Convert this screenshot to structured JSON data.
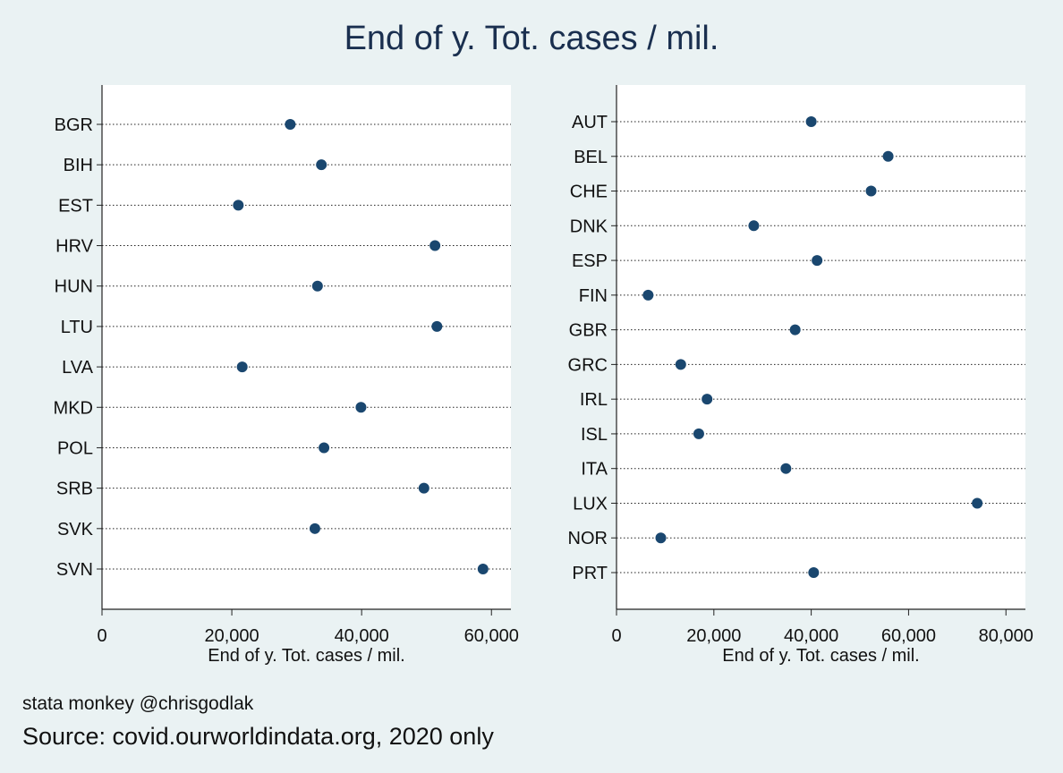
{
  "title": "End of y. Tot. cases / mil.",
  "notes": {
    "credit": "stata monkey @chrisgodlak",
    "source": "Source: covid.ourworldindata.org, 2020 only"
  },
  "colors": {
    "background": "#eaf2f3",
    "plot_area": "#ffffff",
    "marker": "#1a476f",
    "text": "#111111",
    "title": "#1a2f4f"
  },
  "chart_data": [
    {
      "type": "scatter",
      "orientation": "horizontal-dot",
      "xlabel": "End of y. Tot. cases / mil.",
      "xlim": [
        0,
        63000
      ],
      "xticks": [
        0,
        20000,
        40000,
        60000
      ],
      "xtick_labels": [
        "0",
        "20,000",
        "40,000",
        "60,000"
      ],
      "grid": "dotted horizontal",
      "categories": [
        "BGR",
        "BIH",
        "EST",
        "HRV",
        "HUN",
        "LTU",
        "LVA",
        "MKD",
        "POL",
        "SRB",
        "SVK",
        "SVN"
      ],
      "values": [
        29000,
        33800,
        21000,
        51300,
        33200,
        51600,
        21600,
        39900,
        34200,
        49600,
        32800,
        58700
      ]
    },
    {
      "type": "scatter",
      "orientation": "horizontal-dot",
      "xlabel": "End of y. Tot. cases / mil.",
      "xlim": [
        0,
        84000
      ],
      "xticks": [
        0,
        20000,
        40000,
        60000,
        80000
      ],
      "xtick_labels": [
        "0",
        "20,000",
        "40,000",
        "60,000",
        "80,000"
      ],
      "grid": "dotted horizontal",
      "categories": [
        "AUT",
        "BEL",
        "CHE",
        "DNK",
        "ESP",
        "FIN",
        "GBR",
        "GRC",
        "IRL",
        "ISL",
        "ITA",
        "LUX",
        "NOR",
        "PRT"
      ],
      "values": [
        40000,
        55800,
        52300,
        28200,
        41200,
        6500,
        36700,
        13200,
        18600,
        16900,
        34800,
        74100,
        9100,
        40500
      ]
    }
  ]
}
